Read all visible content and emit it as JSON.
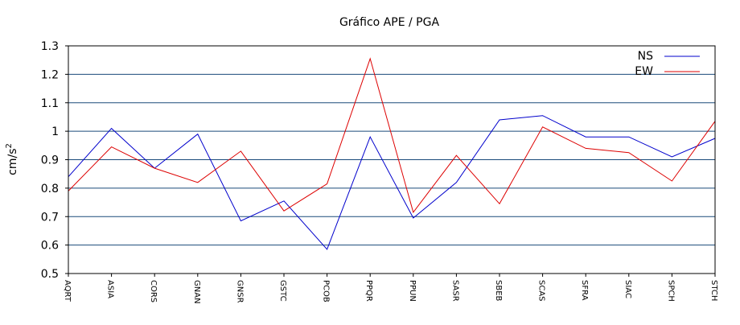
{
  "chart_data": {
    "type": "line",
    "title": "Gráfico  APE / PGA",
    "xlabel": "",
    "ylabel": "cm/s",
    "ylabel_superscript": "2",
    "ylim": [
      0.5,
      1.3
    ],
    "yticks": [
      "0.5",
      "0.6",
      "0.7",
      "0.8",
      "0.9",
      "1",
      "1.1",
      "1.2",
      "1.3"
    ],
    "grid": true,
    "legend_position": "top-right",
    "categories": [
      "AQRT",
      "ASIA",
      "CORS",
      "GNAN",
      "GNSR",
      "GSTC",
      "PCOB",
      "PPQR",
      "PPUN",
      "SASR",
      "SBEB",
      "SCAS",
      "SFRA",
      "SIAC",
      "SPCH",
      "STCH"
    ],
    "series": [
      {
        "name": "NS",
        "color": "#0000cc",
        "values": [
          0.84,
          1.01,
          0.87,
          0.99,
          0.685,
          0.755,
          0.585,
          0.98,
          0.695,
          0.82,
          1.04,
          1.055,
          0.98,
          0.98,
          0.91,
          0.975
        ]
      },
      {
        "name": "EW",
        "color": "#dd0000",
        "values": [
          0.79,
          0.945,
          0.87,
          0.82,
          0.93,
          0.72,
          0.815,
          1.255,
          0.715,
          0.915,
          0.745,
          1.015,
          0.94,
          0.925,
          0.825,
          1.035
        ]
      }
    ]
  },
  "colors": {
    "gridline": "#1a4a7a",
    "axis": "#000000"
  }
}
